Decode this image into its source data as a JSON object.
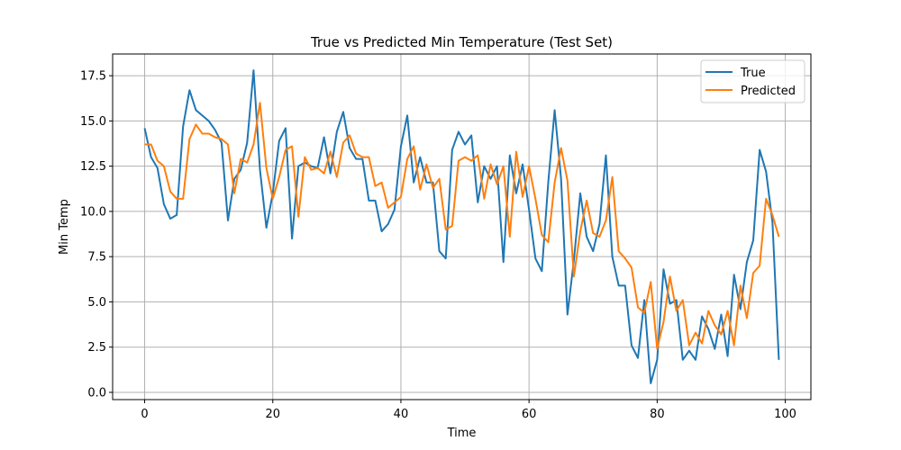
{
  "chart_data": {
    "type": "line",
    "title": "True vs Predicted Min Temperature (Test Set)",
    "xlabel": "Time",
    "ylabel": "Min Temp",
    "xlim": [
      -5,
      104
    ],
    "ylim": [
      -0.4,
      18.7
    ],
    "xticks": [
      0,
      20,
      40,
      60,
      80,
      100
    ],
    "yticks": [
      0.0,
      2.5,
      5.0,
      7.5,
      10.0,
      12.5,
      15.0,
      17.5
    ],
    "xtick_labels": [
      "0",
      "20",
      "40",
      "60",
      "80",
      "100"
    ],
    "ytick_labels": [
      "0.0",
      "2.5",
      "5.0",
      "7.5",
      "10.0",
      "12.5",
      "15.0",
      "17.5"
    ],
    "grid": true,
    "legend_position": "top-right",
    "series": [
      {
        "name": "True",
        "color": "#1f77b4",
        "values": [
          14.6,
          13.0,
          12.4,
          10.4,
          9.6,
          9.8,
          14.7,
          16.7,
          15.6,
          15.3,
          15.0,
          14.5,
          13.8,
          9.5,
          11.8,
          12.3,
          13.8,
          17.8,
          12.3,
          9.1,
          11.0,
          13.9,
          14.6,
          8.5,
          12.5,
          12.7,
          12.5,
          12.4,
          14.1,
          12.1,
          14.4,
          15.5,
          13.5,
          12.9,
          12.9,
          10.6,
          10.6,
          8.9,
          9.3,
          10.1,
          13.6,
          15.3,
          11.6,
          13.0,
          11.6,
          11.6,
          7.8,
          7.4,
          13.4,
          14.4,
          13.7,
          14.2,
          10.5,
          12.5,
          11.8,
          12.5,
          7.2,
          13.1,
          11.0,
          12.6,
          10.1,
          7.4,
          6.7,
          11.6,
          15.6,
          11.8,
          4.3,
          7.3,
          11.0,
          8.6,
          7.8,
          9.3,
          13.1,
          7.5,
          5.9,
          5.9,
          2.6,
          1.9,
          5.1,
          0.5,
          1.8,
          6.8,
          4.9,
          5.1,
          1.8,
          2.3,
          1.8,
          4.2,
          3.5,
          2.4,
          4.3,
          2.0,
          6.5,
          4.6,
          7.2,
          8.4,
          13.4,
          12.2,
          9.4,
          1.8
        ]
      },
      {
        "name": "Predicted",
        "color": "#ff7f0e",
        "values": [
          13.7,
          13.7,
          12.8,
          12.5,
          11.1,
          10.7,
          10.7,
          14.0,
          14.8,
          14.3,
          14.3,
          14.1,
          14.0,
          13.7,
          11.0,
          12.9,
          12.7,
          13.7,
          16.0,
          12.4,
          10.7,
          11.9,
          13.4,
          13.6,
          9.7,
          13.0,
          12.3,
          12.4,
          12.1,
          13.3,
          11.9,
          13.8,
          14.2,
          13.2,
          13.0,
          13.0,
          11.4,
          11.6,
          10.2,
          10.5,
          10.8,
          12.9,
          13.6,
          11.2,
          12.6,
          11.3,
          11.8,
          9.0,
          9.2,
          12.8,
          13.0,
          12.8,
          13.1,
          10.7,
          12.6,
          11.5,
          12.5,
          8.6,
          13.3,
          10.8,
          12.5,
          10.7,
          8.7,
          8.3,
          11.6,
          13.5,
          11.7,
          6.4,
          8.9,
          10.6,
          8.8,
          8.6,
          9.5,
          11.9,
          7.8,
          7.4,
          6.9,
          4.7,
          4.4,
          6.1,
          2.4,
          3.9,
          6.4,
          4.5,
          5.1,
          2.6,
          3.3,
          2.7,
          4.5,
          3.7,
          3.2,
          4.5,
          2.6,
          5.9,
          4.1,
          6.6,
          7.0,
          10.7,
          9.8,
          8.6
        ]
      }
    ]
  }
}
